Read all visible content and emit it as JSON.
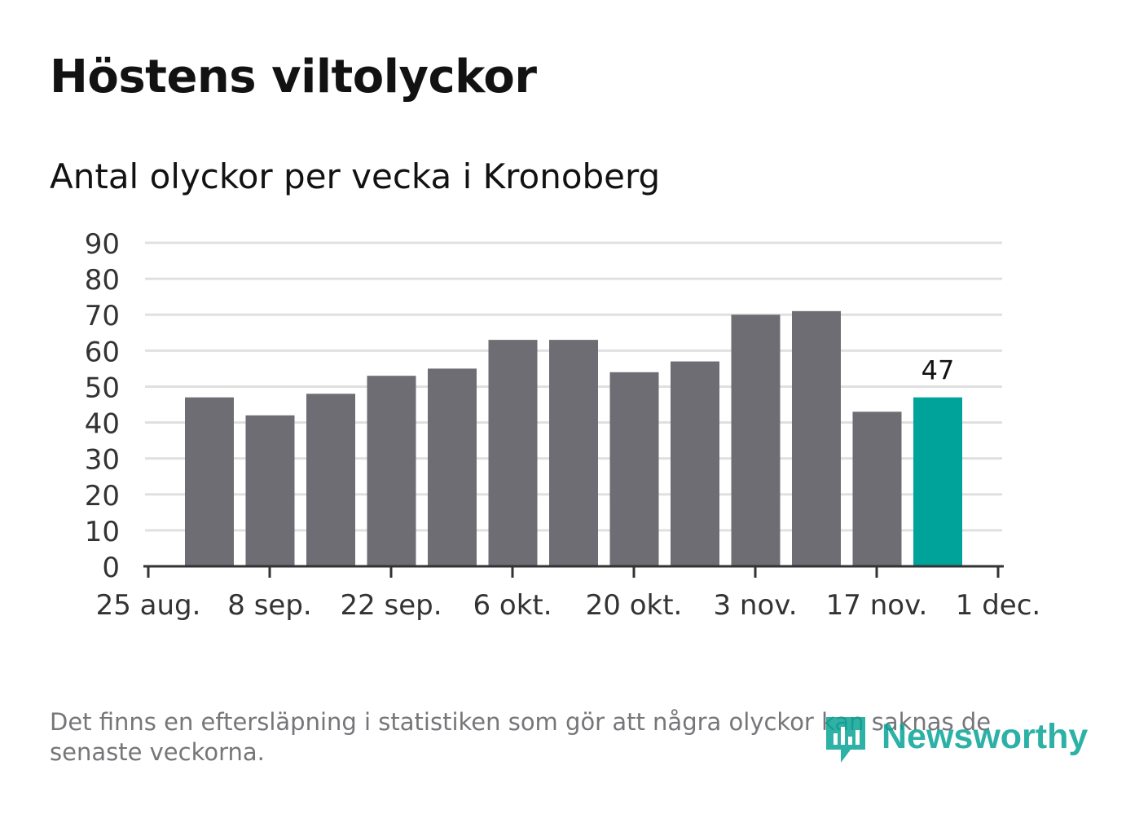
{
  "header": {
    "title": "Höstens viltolyckor",
    "subtitle": "Antal olyckor per vecka i Kronoberg"
  },
  "chart_data": {
    "type": "bar",
    "title": "Höstens viltolyckor",
    "subtitle": "Antal olyckor per vecka i Kronoberg",
    "xlabel": "",
    "ylabel": "",
    "ylim": [
      0,
      90
    ],
    "yticks": [
      0,
      10,
      20,
      30,
      40,
      50,
      60,
      70,
      80,
      90
    ],
    "xticks": [
      "25 aug.",
      "8 sep.",
      "22 sep.",
      "6 okt.",
      "20 okt.",
      "3 nov.",
      "17 nov.",
      "1 dec."
    ],
    "grid": true,
    "values": [
      47,
      42,
      48,
      53,
      55,
      63,
      63,
      54,
      57,
      70,
      71,
      43,
      47
    ],
    "highlight_index": 12,
    "highlight_label": "47",
    "colors": {
      "bar": "#6e6d73",
      "highlight": "#00a39a",
      "grid": "#e0e0e0",
      "axis": "#333333",
      "text": "#333333"
    }
  },
  "footer": {
    "note": "Det finns en eftersläpning i statistiken som gör att några olyckor kan saknas de senaste veckorna.",
    "logo_text": "Newsworthy",
    "logo_color": "#09a497"
  }
}
